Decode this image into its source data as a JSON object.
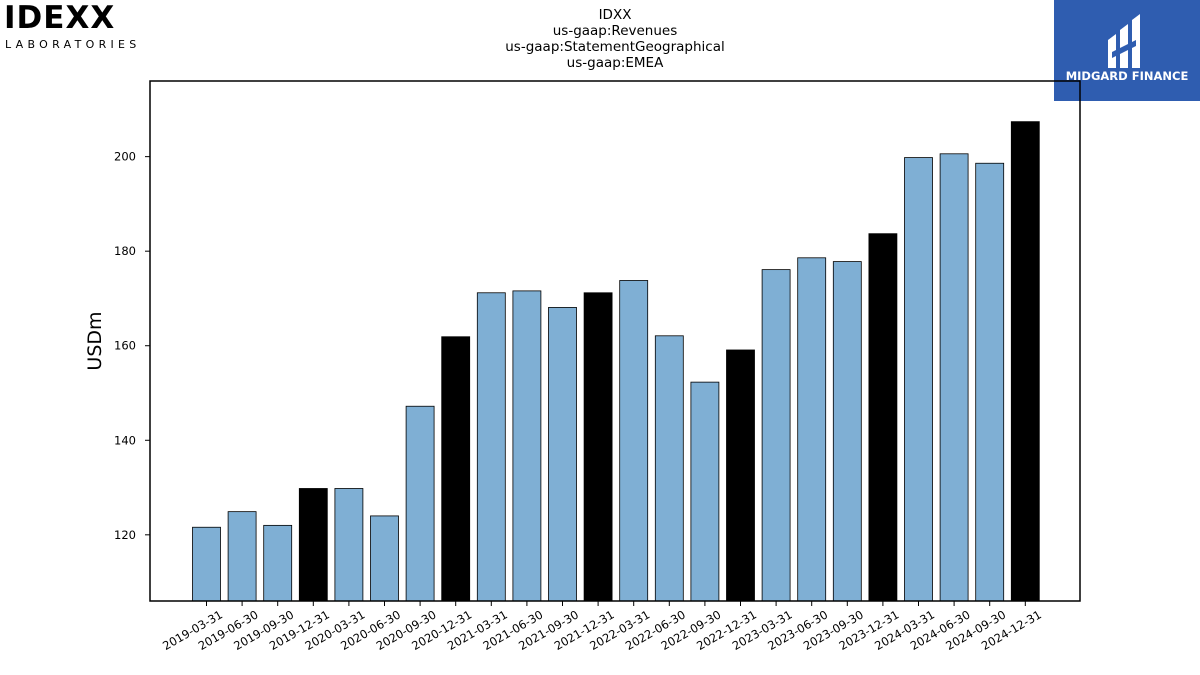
{
  "logos": {
    "left": {
      "word": "IDEXX",
      "sub": "LABORATORIES"
    },
    "right": {
      "brand": "MIDGARD FINANCE",
      "background": "#2f5db0"
    }
  },
  "chart_data": {
    "type": "bar",
    "title_lines": [
      "IDXX",
      "us-gaap:Revenues",
      "us-gaap:StatementGeographical",
      "us-gaap:EMEA"
    ],
    "ylabel": "USDm",
    "xlabel": "",
    "ylim": [
      106,
      216
    ],
    "yticks": [
      120,
      140,
      160,
      180,
      200
    ],
    "grid": false,
    "colors": {
      "quarter": "#7fafd4",
      "year_end": "#000000",
      "edge": "#000000"
    },
    "categories": [
      "2019-03-31",
      "2019-06-30",
      "2019-09-30",
      "2019-12-31",
      "2020-03-31",
      "2020-06-30",
      "2020-09-30",
      "2020-12-31",
      "2021-03-31",
      "2021-06-30",
      "2021-09-30",
      "2021-12-31",
      "2022-03-31",
      "2022-06-30",
      "2022-09-30",
      "2022-12-31",
      "2023-03-31",
      "2023-06-30",
      "2023-09-30",
      "2023-12-31",
      "2024-03-31",
      "2024-06-30",
      "2024-09-30",
      "2024-12-31"
    ],
    "values": [
      121.6,
      124.9,
      122.0,
      129.8,
      129.8,
      124.0,
      147.2,
      161.9,
      171.2,
      171.6,
      168.1,
      171.2,
      173.8,
      162.1,
      152.3,
      159.1,
      176.1,
      178.6,
      177.8,
      183.7,
      199.8,
      200.6,
      198.6,
      207.4
    ],
    "highlight": [
      false,
      false,
      false,
      true,
      false,
      false,
      false,
      true,
      false,
      false,
      false,
      true,
      false,
      false,
      false,
      true,
      false,
      false,
      false,
      true,
      false,
      false,
      false,
      true
    ]
  }
}
